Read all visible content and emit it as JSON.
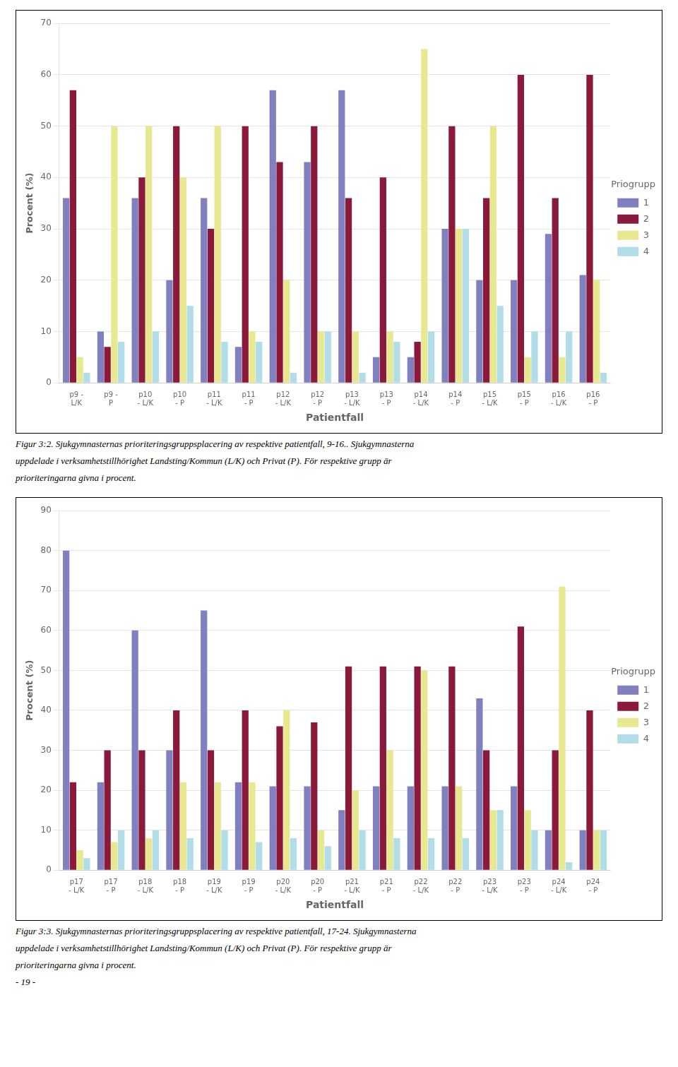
{
  "chart_data": [
    {
      "type": "bar",
      "xlabel": "Patientfall",
      "ylabel": "Procent (%)",
      "legend_title": "Priogrupp",
      "categories": [
        "p9 -\nL/K",
        "p9 -\nP",
        "p10\n- L/K",
        "p10\n- P",
        "p11\n- L/K",
        "p11\n- P",
        "p12\n- L/K",
        "p12\n- P",
        "p13\n- L/K",
        "p13\n- P",
        "p14\n- L/K",
        "p14\n- P",
        "p15\n- L/K",
        "p15\n- P",
        "p16\n- L/K",
        "p16\n- P"
      ],
      "series": [
        {
          "name": "1",
          "color": "#8080C0",
          "values": [
            36,
            10,
            36,
            20,
            36,
            7,
            57,
            43,
            57,
            5,
            5,
            30,
            20,
            20,
            29,
            21
          ]
        },
        {
          "name": "2",
          "color": "#8B1A3A",
          "values": [
            57,
            7,
            40,
            50,
            30,
            50,
            43,
            50,
            36,
            40,
            8,
            50,
            36,
            60,
            36,
            60
          ]
        },
        {
          "name": "3",
          "color": "#E8E890",
          "values": [
            5,
            50,
            50,
            40,
            50,
            10,
            20,
            10,
            10,
            10,
            65,
            30,
            50,
            5,
            5,
            20
          ]
        },
        {
          "name": "4",
          "color": "#B0DDE8",
          "values": [
            2,
            8,
            10,
            15,
            8,
            8,
            2,
            10,
            2,
            8,
            10,
            30,
            15,
            10,
            10,
            2
          ]
        }
      ],
      "ylim": [
        0,
        70
      ],
      "yticks": [
        0,
        10,
        20,
        30,
        40,
        50,
        60,
        70
      ],
      "grid": true,
      "legend": "right",
      "annotations": [
        "Figur 3:2. Sjukgymnasternas prioriteringsgruppsplacering av respektive patientfall, 9-16.. Sjukgymnasterna",
        "uppdelade i verksamhetstillhörighet Landsting/Kommun (L/K) och Privat (P). För respektive grupp är",
        "prioriteringarna givna i procent."
      ]
    },
    {
      "type": "bar",
      "xlabel": "Patientfall",
      "ylabel": "Procent (%)",
      "legend_title": "Priogrupp",
      "categories": [
        "p17\n- L/K",
        "p17\n- P",
        "p18\n- L/K",
        "p18\n- P",
        "p19\n- L/K",
        "p19\n- P",
        "p20\n- L/K",
        "p20\n- P",
        "p21\n- L/K",
        "p21\n- P",
        "p22\n- L/K",
        "p22\n- P",
        "p23\n- L/K",
        "p23\n- P",
        "p24\n- L/K",
        "p24\n- P"
      ],
      "series": [
        {
          "name": "1",
          "color": "#8080C0",
          "values": [
            80,
            22,
            60,
            30,
            65,
            22,
            21,
            21,
            15,
            21,
            21,
            21,
            43,
            21,
            10,
            10
          ]
        },
        {
          "name": "2",
          "color": "#8B1A3A",
          "values": [
            22,
            30,
            30,
            40,
            30,
            40,
            36,
            37,
            51,
            51,
            51,
            51,
            30,
            61,
            30,
            40
          ]
        },
        {
          "name": "3",
          "color": "#E8E890",
          "values": [
            5,
            7,
            8,
            22,
            22,
            22,
            40,
            10,
            20,
            30,
            50,
            21,
            15,
            15,
            71,
            10
          ]
        },
        {
          "name": "4",
          "color": "#B0DDE8",
          "values": [
            3,
            10,
            10,
            8,
            10,
            7,
            8,
            6,
            10,
            8,
            8,
            8,
            15,
            10,
            2,
            10
          ]
        }
      ],
      "ylim": [
        0,
        90
      ],
      "yticks": [
        0,
        10,
        20,
        30,
        40,
        50,
        60,
        70,
        80,
        90
      ],
      "grid": true,
      "legend": "right",
      "annotations": [
        "Figur 3:3. Sjukgymnasternas prioriteringsgruppsplacering av respektive patientfall, 17-24. Sjukgymnasterna",
        "uppdelade i verksamhetstillhörighet Landsting/Kommun (L/K) och Privat (P). För respektive grupp är",
        "prioriteringarna givna i procent.",
        "- 19 -"
      ]
    }
  ]
}
